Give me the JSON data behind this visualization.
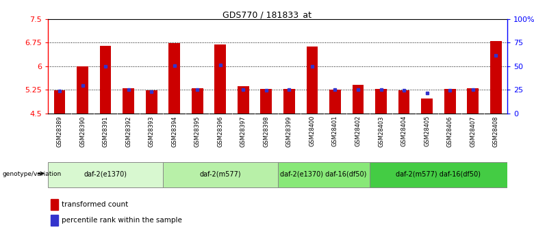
{
  "title": "GDS770 / 181833_at",
  "samples": [
    "GSM28389",
    "GSM28390",
    "GSM28391",
    "GSM28392",
    "GSM28393",
    "GSM28394",
    "GSM28395",
    "GSM28396",
    "GSM28397",
    "GSM28398",
    "GSM28399",
    "GSM28400",
    "GSM28401",
    "GSM28402",
    "GSM28403",
    "GSM28404",
    "GSM28405",
    "GSM28406",
    "GSM28407",
    "GSM28408"
  ],
  "red_heights": [
    5.22,
    6.0,
    6.65,
    5.3,
    5.22,
    6.72,
    5.3,
    6.68,
    5.37,
    5.28,
    5.27,
    6.62,
    5.26,
    5.4,
    5.28,
    5.22,
    4.97,
    5.28,
    5.3,
    6.8
  ],
  "blue_values": [
    5.2,
    5.38,
    6.0,
    5.25,
    5.19,
    6.02,
    5.25,
    6.03,
    5.25,
    5.22,
    5.25,
    6.0,
    5.25,
    5.25,
    5.25,
    5.22,
    5.15,
    5.22,
    5.25,
    6.35
  ],
  "ylim_left": [
    4.5,
    7.5
  ],
  "ylim_right": [
    0,
    100
  ],
  "yticks_left": [
    4.5,
    5.25,
    6.0,
    6.75,
    7.5
  ],
  "ytick_labels_left": [
    "4.5",
    "5.25",
    "6",
    "6.75",
    "7.5"
  ],
  "yticks_right": [
    0,
    25,
    50,
    75,
    100
  ],
  "ytick_labels_right": [
    "0",
    "25",
    "50",
    "75",
    "100%"
  ],
  "bar_bottom": 4.5,
  "bar_color": "#cc0000",
  "blue_color": "#3333cc",
  "groups": [
    {
      "label": "daf-2(e1370)",
      "start": 0,
      "end": 5,
      "color": "#d8f8d0"
    },
    {
      "label": "daf-2(m577)",
      "start": 5,
      "end": 10,
      "color": "#b8f0a8"
    },
    {
      "label": "daf-2(e1370) daf-16(df50)",
      "start": 10,
      "end": 14,
      "color": "#88e878"
    },
    {
      "label": "daf-2(m577) daf-16(df50)",
      "start": 14,
      "end": 20,
      "color": "#44cc44"
    }
  ],
  "group_label_prefix": "genotype/variation",
  "legend_red": "transformed count",
  "legend_blue": "percentile rank within the sample",
  "dotted_lines": [
    5.25,
    6.0,
    6.75
  ],
  "bar_width": 0.5,
  "xtick_bg_color": "#c0c0c0",
  "title_fontsize": 9,
  "bar_color_red": "#cc0000",
  "marker_size": 3.5
}
